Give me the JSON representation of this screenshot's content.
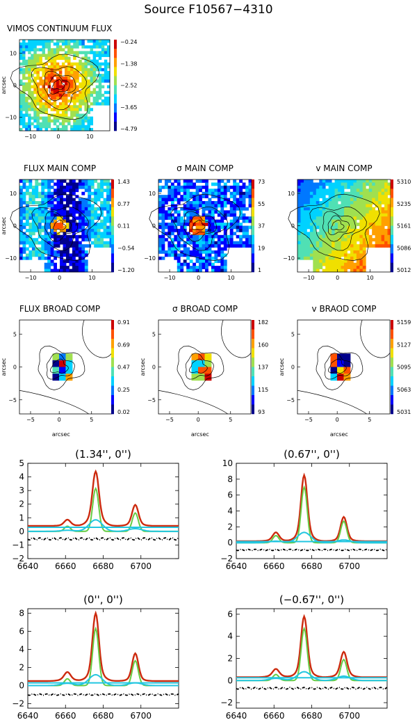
{
  "figure_title": "Source F10567−4310",
  "colors": {
    "colormap": [
      "#00008b",
      "#0000ff",
      "#0078ff",
      "#00d2ff",
      "#50e0b4",
      "#a0e050",
      "#f0e000",
      "#ffa000",
      "#ff5000",
      "#cc0000"
    ],
    "data_red": "#cc2a0e",
    "fit_green": "#66cc44",
    "fit_cyan": "#22c6e0",
    "residual_black": "#000000"
  },
  "maps": [
    {
      "id": "vimos-continuum",
      "title": "VIMOS CONTINUUM FLUX",
      "ylabel": "arcsec",
      "xlabel": "",
      "xticks": [
        "−10",
        "0",
        "10"
      ],
      "yticks": [
        "10",
        "0",
        "−10"
      ],
      "cbar_ticks": [
        "−0.24",
        "−1.38",
        "−2.52",
        "−3.65",
        "−4.79"
      ],
      "pattern": "continuum"
    },
    {
      "id": "flux-main",
      "title": "FLUX MAIN COMP",
      "ylabel": "arcsec",
      "xlabel": "",
      "xticks": [
        "−10",
        "0",
        "10"
      ],
      "yticks": [
        "10",
        "0",
        "−10"
      ],
      "cbar_ticks": [
        "1.43",
        "0.77",
        "0.11",
        "−0.54",
        "−1.20"
      ],
      "pattern": "fluxmain"
    },
    {
      "id": "sigma-main",
      "title": "σ MAIN COMP",
      "ylabel": "",
      "xlabel": "",
      "xticks": [
        "−10",
        "0",
        "10"
      ],
      "yticks": [
        "10",
        "0",
        "−10"
      ],
      "cbar_ticks": [
        "73",
        "55",
        "37",
        "19",
        "1"
      ],
      "pattern": "sigma"
    },
    {
      "id": "v-main",
      "title": "v MAIN COMP",
      "ylabel": "",
      "xlabel": "",
      "xticks": [
        "−10",
        "0",
        "10"
      ],
      "yticks": [
        "10",
        "0",
        "−10"
      ],
      "cbar_ticks": [
        "5310",
        "5235",
        "5161",
        "5086",
        "5012"
      ],
      "pattern": "velocity"
    },
    {
      "id": "flux-broad",
      "title": "FLUX BROAD COMP",
      "ylabel": "arcsec",
      "xlabel": "arcsec",
      "xticks": [
        "−5",
        "0",
        "5"
      ],
      "yticks": [
        "5",
        "0",
        "−5"
      ],
      "cbar_ticks": [
        "0.91",
        "0.69",
        "0.47",
        "0.25",
        "0.02"
      ],
      "pattern": "broad"
    },
    {
      "id": "sigma-broad",
      "title": "σ BROAD COMP",
      "ylabel": "arcsec",
      "xlabel": "arcsec",
      "xticks": [
        "−5",
        "0",
        "5"
      ],
      "yticks": [
        "5",
        "0",
        "−5"
      ],
      "cbar_ticks": [
        "182",
        "160",
        "137",
        "115",
        "93"
      ],
      "pattern": "broad"
    },
    {
      "id": "v-broad",
      "title": "v BRAOD COMP",
      "ylabel": "arcsec",
      "xlabel": "arcsec",
      "xticks": [
        "−5",
        "0",
        "5"
      ],
      "yticks": [
        "5",
        "0",
        "−5"
      ],
      "cbar_ticks": [
        "5159",
        "5127",
        "5095",
        "5063",
        "5031"
      ],
      "pattern": "broad"
    }
  ],
  "chart_data": [
    {
      "type": "line",
      "title": "(1.34'', 0'')",
      "xlabel": "",
      "ylabel": "",
      "xlim": [
        6640,
        6720
      ],
      "ylim": [
        -2,
        5
      ],
      "xticks": [
        6640,
        6660,
        6680,
        6700
      ],
      "yticks": [
        -2,
        -1,
        0,
        1,
        2,
        3,
        4,
        5
      ],
      "lines": [
        {
          "center": 6661,
          "sigma": 1.6
        },
        {
          "center": 6676,
          "sigma": 1.6
        },
        {
          "center": 6697,
          "sigma": 1.6
        }
      ],
      "series": [
        {
          "name": "data",
          "color": "#cc2a0e",
          "baseline": 0.4,
          "narrow": [
            0.38,
            3.15,
            1.35
          ],
          "broad": [
            0.08,
            0.85,
            0.2
          ],
          "broad_sigma": 3.5
        },
        {
          "name": "narrow",
          "color": "#66cc44",
          "baseline": 0.0,
          "narrow": [
            0.38,
            3.15,
            1.35
          ],
          "broad": [
            0,
            0,
            0
          ]
        },
        {
          "name": "broad",
          "color": "#22c6e0",
          "baseline": 0.0,
          "narrow": [
            0,
            0,
            0
          ],
          "broad": [
            0.08,
            0.85,
            0.2
          ],
          "broad_sigma": 3.5
        },
        {
          "name": "continuum",
          "color": "#22c6e0",
          "baseline": 0.3,
          "narrow": [
            0,
            0,
            0
          ],
          "broad": [
            0,
            0,
            0
          ]
        },
        {
          "name": "residual",
          "color": "#000000",
          "baseline": -0.55,
          "narrow": [
            0,
            0,
            0
          ],
          "broad": [
            0,
            0,
            0
          ],
          "dashed": true
        }
      ]
    },
    {
      "type": "line",
      "title": "(0.67'', 0'')",
      "xlabel": "",
      "ylabel": "",
      "xlim": [
        6640,
        6720
      ],
      "ylim": [
        -2,
        10
      ],
      "xticks": [
        6640,
        6660,
        6680,
        6700
      ],
      "yticks": [
        -2,
        0,
        2,
        4,
        6,
        8,
        10
      ],
      "lines": [
        {
          "center": 6661,
          "sigma": 1.6
        },
        {
          "center": 6676,
          "sigma": 1.6
        },
        {
          "center": 6697,
          "sigma": 1.6
        }
      ],
      "series": [
        {
          "name": "data",
          "color": "#cc2a0e",
          "baseline": 0.2,
          "narrow": [
            0.9,
            7.0,
            2.7
          ],
          "broad": [
            0.2,
            1.3,
            0.35
          ],
          "broad_sigma": 3.5
        },
        {
          "name": "narrow",
          "color": "#66cc44",
          "baseline": 0.0,
          "narrow": [
            0.9,
            7.0,
            2.7
          ],
          "broad": [
            0,
            0,
            0
          ]
        },
        {
          "name": "broad",
          "color": "#22c6e0",
          "baseline": 0.0,
          "narrow": [
            0,
            0,
            0
          ],
          "broad": [
            0.2,
            1.3,
            0.35
          ],
          "broad_sigma": 3.5
        },
        {
          "name": "continuum",
          "color": "#22c6e0",
          "baseline": 0.15,
          "narrow": [
            0,
            0,
            0
          ],
          "broad": [
            0,
            0,
            0
          ]
        },
        {
          "name": "residual",
          "color": "#000000",
          "baseline": -0.9,
          "narrow": [
            0,
            0,
            0
          ],
          "broad": [
            0,
            0,
            0
          ],
          "dashed": true
        }
      ]
    },
    {
      "type": "line",
      "title": "(0'', 0'')",
      "xlabel": "",
      "ylabel": "",
      "xlim": [
        6640,
        6720
      ],
      "ylim": [
        -2.5,
        8.5
      ],
      "xticks": [
        6640,
        6660,
        6680,
        6700
      ],
      "yticks": [
        -2,
        0,
        2,
        4,
        6,
        8
      ],
      "lines": [
        {
          "center": 6661,
          "sigma": 1.6
        },
        {
          "center": 6676,
          "sigma": 1.6
        },
        {
          "center": 6697,
          "sigma": 1.6
        }
      ],
      "series": [
        {
          "name": "data",
          "color": "#cc2a0e",
          "baseline": 0.5,
          "narrow": [
            0.75,
            6.3,
            2.75
          ],
          "broad": [
            0.25,
            1.2,
            0.3
          ],
          "broad_sigma": 3.5
        },
        {
          "name": "narrow",
          "color": "#66cc44",
          "baseline": 0.0,
          "narrow": [
            0.75,
            6.3,
            2.75
          ],
          "broad": [
            0,
            0,
            0
          ]
        },
        {
          "name": "broad",
          "color": "#22c6e0",
          "baseline": 0.0,
          "narrow": [
            0,
            0,
            0
          ],
          "broad": [
            0.25,
            1.2,
            0.3
          ],
          "broad_sigma": 3.5
        },
        {
          "name": "continuum",
          "color": "#22c6e0",
          "baseline": 0.3,
          "narrow": [
            0,
            0,
            0
          ],
          "broad": [
            0,
            0,
            0
          ]
        },
        {
          "name": "residual",
          "color": "#000000",
          "baseline": -1.0,
          "narrow": [
            0,
            0,
            0
          ],
          "broad": [
            0,
            0,
            0
          ],
          "dashed": true
        }
      ]
    },
    {
      "type": "line",
      "title": "(−0.67'', 0'')",
      "xlabel": "",
      "ylabel": "",
      "xlim": [
        6640,
        6720
      ],
      "ylim": [
        -2.5,
        6.5
      ],
      "xticks": [
        6640,
        6660,
        6680,
        6700
      ],
      "yticks": [
        -2,
        0,
        2,
        4,
        6
      ],
      "lines": [
        {
          "center": 6661,
          "sigma": 1.6
        },
        {
          "center": 6676,
          "sigma": 1.6
        },
        {
          "center": 6697,
          "sigma": 1.6
        }
      ],
      "series": [
        {
          "name": "data",
          "color": "#cc2a0e",
          "baseline": 0.3,
          "narrow": [
            0.55,
            4.7,
            1.9
          ],
          "broad": [
            0.2,
            0.8,
            0.4
          ],
          "broad_sigma": 3.5
        },
        {
          "name": "narrow",
          "color": "#66cc44",
          "baseline": 0.0,
          "narrow": [
            0.55,
            4.7,
            1.9
          ],
          "broad": [
            0,
            0,
            0
          ]
        },
        {
          "name": "broad",
          "color": "#22c6e0",
          "baseline": 0.0,
          "narrow": [
            0,
            0,
            0
          ],
          "broad": [
            0.2,
            0.8,
            0.4
          ],
          "broad_sigma": 3.5
        },
        {
          "name": "continuum",
          "color": "#22c6e0",
          "baseline": 0.25,
          "narrow": [
            0,
            0,
            0
          ],
          "broad": [
            0,
            0,
            0
          ]
        },
        {
          "name": "residual",
          "color": "#000000",
          "baseline": -0.7,
          "narrow": [
            0,
            0,
            0
          ],
          "broad": [
            0,
            0,
            0
          ],
          "dashed": true
        }
      ]
    }
  ]
}
